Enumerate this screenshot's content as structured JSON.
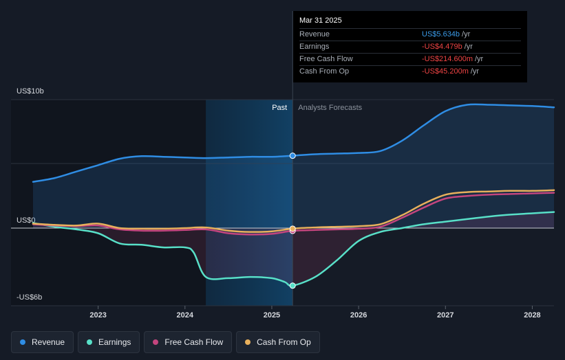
{
  "colors": {
    "revenue": "#2f8de4",
    "earnings": "#58e0c8",
    "free_cash_flow": "#c4457e",
    "cash_from_op": "#e8b05c",
    "background": "#151b26"
  },
  "tooltip": {
    "date": "Mar 31 2025",
    "rows": [
      {
        "label": "Revenue",
        "value": "US$5.634b",
        "unit": "/yr"
      },
      {
        "label": "Earnings",
        "value": "-US$4.479b",
        "unit": "/yr"
      },
      {
        "label": "Free Cash Flow",
        "value": "-US$214.600m",
        "unit": "/yr"
      },
      {
        "label": "Cash From Op",
        "value": "-US$45.200m",
        "unit": "/yr"
      }
    ]
  },
  "legend": [
    {
      "label": "Revenue",
      "icon": "revenue-dot-icon"
    },
    {
      "label": "Earnings",
      "icon": "earnings-dot-icon"
    },
    {
      "label": "Free Cash Flow",
      "icon": "free-cash-flow-dot-icon"
    },
    {
      "label": "Cash From Op",
      "icon": "cash-from-op-dot-icon"
    }
  ],
  "chart_data": {
    "type": "line",
    "y_unit": "US$ billions",
    "ylim": [
      -6,
      10
    ],
    "xlim": [
      2022.25,
      2028.25
    ],
    "y_tick_labels": [
      {
        "value": 10,
        "label": "US$10b"
      },
      {
        "value": 0,
        "label": "US$0"
      },
      {
        "value": -5.5,
        "label": "-US$6b"
      }
    ],
    "x_ticks": [
      2023,
      2024,
      2025,
      2026,
      2027,
      2028
    ],
    "x_tick_labels": [
      "2023",
      "2024",
      "2025",
      "2026",
      "2027",
      "2028"
    ],
    "past_label": "Past",
    "forecast_label": "Analysts Forecasts",
    "divider_x": 2025.24,
    "highlight_start": 2024.24,
    "series": [
      {
        "name": "Revenue",
        "key": "revenue",
        "x": [
          2022.25,
          2022.5,
          2022.75,
          2023.0,
          2023.25,
          2023.5,
          2023.75,
          2024.0,
          2024.24,
          2024.5,
          2024.75,
          2025.0,
          2025.24,
          2025.5,
          2025.75,
          2026.0,
          2026.25,
          2026.5,
          2026.75,
          2027.0,
          2027.25,
          2027.5,
          2027.75,
          2028.0,
          2028.25
        ],
        "y": [
          3.6,
          3.9,
          4.4,
          4.9,
          5.4,
          5.6,
          5.55,
          5.5,
          5.45,
          5.5,
          5.55,
          5.55,
          5.634,
          5.75,
          5.8,
          5.85,
          6.0,
          6.8,
          8.0,
          9.1,
          9.6,
          9.6,
          9.55,
          9.5,
          9.4
        ]
      },
      {
        "name": "Earnings",
        "key": "earnings",
        "x": [
          2022.25,
          2022.5,
          2022.75,
          2023.0,
          2023.25,
          2023.5,
          2023.75,
          2024.0,
          2024.1,
          2024.24,
          2024.5,
          2024.75,
          2025.0,
          2025.15,
          2025.24,
          2025.5,
          2025.75,
          2026.0,
          2026.25,
          2026.5,
          2026.75,
          2027.0,
          2027.25,
          2027.5,
          2027.75,
          2028.0,
          2028.25
        ],
        "y": [
          0.4,
          0.1,
          -0.1,
          -0.4,
          -1.2,
          -1.3,
          -1.5,
          -1.5,
          -1.9,
          -3.8,
          -3.9,
          -3.8,
          -3.9,
          -4.2,
          -4.479,
          -3.8,
          -2.5,
          -1.0,
          -0.3,
          0.0,
          0.3,
          0.5,
          0.7,
          0.9,
          1.05,
          1.15,
          1.25
        ]
      },
      {
        "name": "Free Cash Flow",
        "key": "free_cash_flow",
        "x": [
          2022.25,
          2022.5,
          2022.75,
          2023.0,
          2023.25,
          2023.5,
          2023.75,
          2024.0,
          2024.24,
          2024.5,
          2024.75,
          2025.0,
          2025.24,
          2025.5,
          2025.75,
          2026.0,
          2026.25,
          2026.5,
          2026.75,
          2027.0,
          2027.25,
          2027.5,
          2027.75,
          2028.0,
          2028.25
        ],
        "y": [
          0.3,
          0.2,
          0.15,
          0.2,
          -0.1,
          -0.2,
          -0.2,
          -0.15,
          -0.1,
          -0.4,
          -0.5,
          -0.45,
          -0.2146,
          -0.15,
          -0.1,
          -0.05,
          0.1,
          0.8,
          1.6,
          2.3,
          2.5,
          2.6,
          2.65,
          2.7,
          2.75
        ]
      },
      {
        "name": "Cash From Op",
        "key": "cash_from_op",
        "x": [
          2022.25,
          2022.5,
          2022.75,
          2023.0,
          2023.25,
          2023.5,
          2023.75,
          2024.0,
          2024.24,
          2024.5,
          2024.75,
          2025.0,
          2025.24,
          2025.5,
          2025.75,
          2026.0,
          2026.25,
          2026.5,
          2026.75,
          2027.0,
          2027.25,
          2027.5,
          2027.75,
          2028.0,
          2028.25
        ],
        "y": [
          0.35,
          0.25,
          0.2,
          0.35,
          0.0,
          -0.05,
          -0.05,
          0.0,
          0.05,
          -0.2,
          -0.3,
          -0.25,
          -0.0452,
          0.05,
          0.1,
          0.15,
          0.3,
          1.0,
          1.9,
          2.6,
          2.8,
          2.85,
          2.9,
          2.9,
          2.95
        ]
      }
    ],
    "grid": true,
    "legend_position": "bottom-left"
  }
}
